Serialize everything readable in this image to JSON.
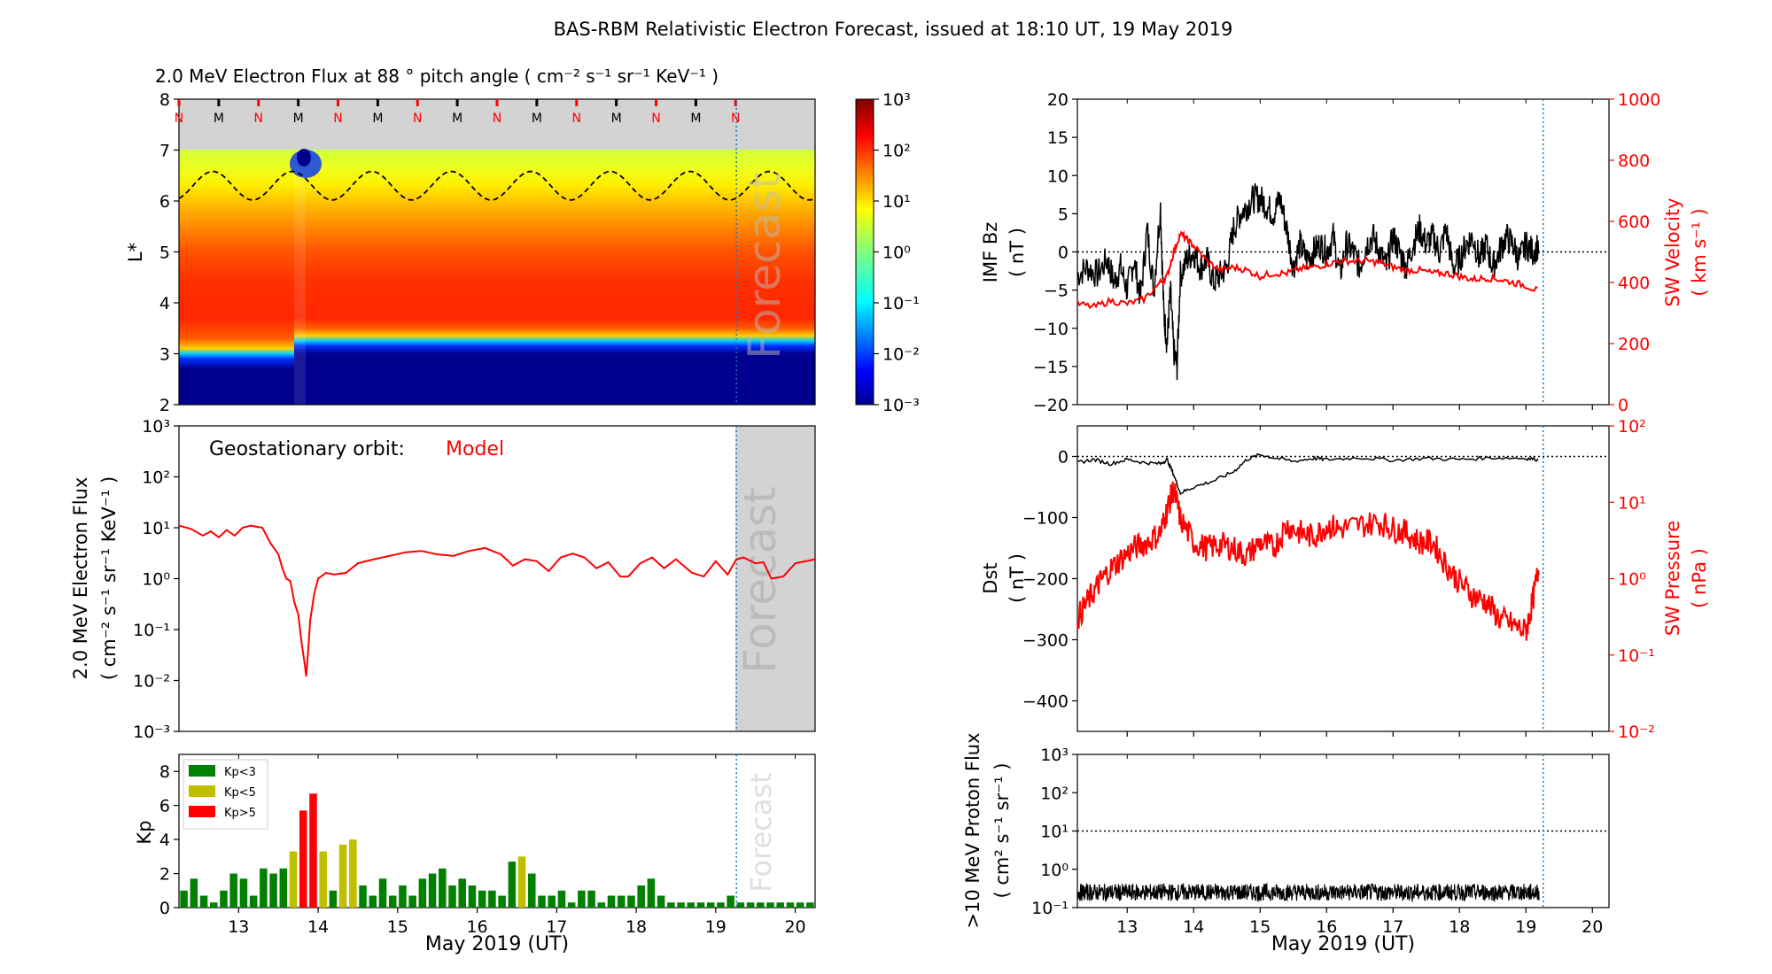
{
  "figure": {
    "suptitle": "BAS-RBM Relativistic Electron Forecast, issued at 18:10 UT, 19 May 2019"
  },
  "colors": {
    "red": "#ff0000",
    "black": "#000000",
    "grey": "#d3d3d3",
    "forecast_line": "#1f77b4",
    "kp_low": "#008000",
    "kp_mid": "#bfbf00",
    "kp_high": "#ff0000"
  },
  "chart_data": [
    {
      "id": "lstar_flux",
      "type": "heatmap",
      "title": "2.0 MeV Electron Flux at 88 ° pitch angle ( cm⁻² s⁻¹ sr⁻¹ KeV⁻¹ )",
      "ylabel": "L*",
      "xlim": [
        12.25,
        20.25
      ],
      "ylim": [
        2,
        8
      ],
      "yticks": [
        "2",
        "3",
        "4",
        "5",
        "6",
        "7",
        "8"
      ],
      "colorbar": {
        "scale": "log",
        "range": [
          0.001,
          1000
        ],
        "ticks": [
          "10⁻³",
          "10⁻²",
          "10⁻¹",
          "10⁰",
          "10¹",
          "10²",
          "10³"
        ]
      },
      "mn_markers": [
        "N",
        "M",
        "N",
        "M",
        "N",
        "M",
        "N",
        "M",
        "N",
        "M",
        "N",
        "M",
        "N",
        "M",
        "N"
      ],
      "overlay_text": "Forecast",
      "forecast_start": 19.26
    },
    {
      "id": "geo_flux",
      "type": "line",
      "label": "Geostationary orbit:",
      "series_label": "Model",
      "ylabel": "2.0 MeV Electron Flux",
      "ylabel2": "( cm⁻² s⁻¹ sr⁻¹ KeV⁻¹ )",
      "yscale": "log",
      "ylim": [
        0.001,
        1000
      ],
      "yticks": [
        "10⁻³",
        "10⁻²",
        "10⁻¹",
        "10⁰",
        "10¹",
        "10²",
        "10³"
      ],
      "xlim": [
        12.25,
        20.25
      ],
      "overlay_text": "Forecast",
      "forecast_start": 19.26,
      "x": [
        12.25,
        12.4,
        12.55,
        12.65,
        12.75,
        12.85,
        12.95,
        13.05,
        13.15,
        13.3,
        13.4,
        13.5,
        13.55,
        13.6,
        13.65,
        13.7,
        13.75,
        13.78,
        13.8,
        13.83,
        13.85,
        13.87,
        13.9,
        13.95,
        14.0,
        14.1,
        14.2,
        14.35,
        14.5,
        14.7,
        14.9,
        15.1,
        15.3,
        15.5,
        15.7,
        15.9,
        16.1,
        16.3,
        16.45,
        16.6,
        16.75,
        16.9,
        17.05,
        17.2,
        17.35,
        17.5,
        17.65,
        17.8,
        17.9,
        18.05,
        18.2,
        18.35,
        18.5,
        18.7,
        18.85,
        19.0,
        19.15,
        19.26,
        19.35,
        19.5,
        19.6,
        19.7,
        19.85,
        20.0,
        20.25
      ],
      "y": [
        11,
        9.5,
        7,
        8.5,
        6.5,
        9,
        7,
        10,
        11,
        10,
        5,
        3,
        1.6,
        1.0,
        0.9,
        0.35,
        0.2,
        0.08,
        0.045,
        0.022,
        0.012,
        0.03,
        0.15,
        0.5,
        1.0,
        1.3,
        1.2,
        1.3,
        2.0,
        2.4,
        2.8,
        3.3,
        3.5,
        3.0,
        2.8,
        3.5,
        4.0,
        3.0,
        1.8,
        2.4,
        2.2,
        1.4,
        2.6,
        3.1,
        2.6,
        1.6,
        2.1,
        1.1,
        1.1,
        2.0,
        2.6,
        1.6,
        2.4,
        1.3,
        1.1,
        2.2,
        1.2,
        2.4,
        2.6,
        2.0,
        2.1,
        1.0,
        1.1,
        2.0,
        2.4
      ]
    },
    {
      "id": "kp",
      "type": "bar",
      "ylabel": "Kp",
      "xlabel": "May 2019 (UT)",
      "xlim": [
        12.25,
        20.25
      ],
      "ylim": [
        0,
        9
      ],
      "yticks": [
        "0",
        "2",
        "4",
        "6",
        "8"
      ],
      "xticks": [
        "13",
        "14",
        "15",
        "16",
        "17",
        "18",
        "19",
        "20"
      ],
      "legend": [
        "Kp<3",
        "Kp<5",
        "Kp>5"
      ],
      "overlay_text": "Forecast",
      "forecast_start": 19.26,
      "values": [
        1.0,
        1.7,
        0.7,
        0.3,
        1.0,
        2.0,
        1.7,
        0.7,
        2.3,
        2.0,
        2.3,
        3.3,
        5.7,
        6.7,
        3.3,
        1.0,
        3.7,
        4.0,
        1.3,
        0.7,
        1.7,
        0.7,
        1.3,
        0.7,
        1.7,
        2.0,
        2.3,
        1.3,
        1.7,
        1.3,
        1.0,
        1.0,
        0.7,
        2.7,
        3.0,
        2.0,
        0.7,
        0.7,
        1.0,
        0.3,
        1.0,
        1.0,
        0.3,
        0.7,
        0.7,
        0.7,
        1.3,
        1.7,
        0.7,
        0.3,
        0.3,
        0.3,
        0.3,
        0.3,
        0.3,
        0.7,
        0.3,
        0.3,
        0.3,
        0.3,
        0.3,
        0.3,
        0.3,
        0.3
      ]
    },
    {
      "id": "imf_sw",
      "type": "line",
      "ylabel": "IMF Bz",
      "ylabel2": "( nT )",
      "ylim": [
        -20,
        20
      ],
      "yticks": [
        "−20",
        "−15",
        "−10",
        "−5",
        "0",
        "5",
        "10",
        "15",
        "20"
      ],
      "right_ylabel": "SW Velocity",
      "right_ylabel2": "( km s⁻¹ )",
      "right_ylim": [
        0,
        1000
      ],
      "right_yticks": [
        "0",
        "200",
        "400",
        "600",
        "800",
        "1000"
      ],
      "xlim": [
        12.25,
        20.25
      ],
      "forecast_start": 19.26,
      "bz": [
        [
          12.25,
          -3
        ],
        [
          12.4,
          -2
        ],
        [
          12.55,
          -3
        ],
        [
          12.7,
          -1
        ],
        [
          12.8,
          -4
        ],
        [
          12.9,
          -2
        ],
        [
          13.0,
          -5
        ],
        [
          13.1,
          -1
        ],
        [
          13.2,
          -6
        ],
        [
          13.3,
          3
        ],
        [
          13.4,
          -5
        ],
        [
          13.5,
          6
        ],
        [
          13.55,
          -8
        ],
        [
          13.6,
          -12
        ],
        [
          13.65,
          -5
        ],
        [
          13.7,
          -13
        ],
        [
          13.75,
          -15
        ],
        [
          13.8,
          -3
        ],
        [
          13.9,
          -1
        ],
        [
          14.0,
          0
        ],
        [
          14.1,
          -2
        ],
        [
          14.2,
          -1
        ],
        [
          14.3,
          -4
        ],
        [
          14.4,
          -3
        ],
        [
          14.5,
          -2
        ],
        [
          14.6,
          3
        ],
        [
          14.7,
          5
        ],
        [
          14.8,
          6
        ],
        [
          14.9,
          7
        ],
        [
          15.0,
          7
        ],
        [
          15.1,
          6
        ],
        [
          15.2,
          5
        ],
        [
          15.3,
          7
        ],
        [
          15.4,
          3
        ],
        [
          15.5,
          -2
        ],
        [
          15.6,
          1
        ],
        [
          15.7,
          -1
        ],
        [
          15.8,
          0
        ],
        [
          15.9,
          1
        ],
        [
          16.0,
          0
        ],
        [
          16.1,
          2
        ],
        [
          16.2,
          -3
        ],
        [
          16.3,
          1
        ],
        [
          16.4,
          0
        ],
        [
          16.5,
          -2
        ],
        [
          16.6,
          1
        ],
        [
          16.7,
          2
        ],
        [
          16.8,
          0
        ],
        [
          16.9,
          -2
        ],
        [
          17.0,
          2
        ],
        [
          17.1,
          0
        ],
        [
          17.2,
          -2
        ],
        [
          17.3,
          1
        ],
        [
          17.4,
          3
        ],
        [
          17.5,
          1
        ],
        [
          17.6,
          2
        ],
        [
          17.7,
          0
        ],
        [
          17.8,
          3
        ],
        [
          17.9,
          -2
        ],
        [
          18.0,
          -1
        ],
        [
          18.1,
          1
        ],
        [
          18.2,
          2
        ],
        [
          18.3,
          -1
        ],
        [
          18.4,
          1
        ],
        [
          18.5,
          -2
        ],
        [
          18.6,
          0
        ],
        [
          18.7,
          2
        ],
        [
          18.8,
          1
        ],
        [
          18.9,
          -1
        ],
        [
          19.0,
          1
        ],
        [
          19.1,
          0
        ],
        [
          19.2,
          1
        ]
      ],
      "vsw": [
        [
          12.25,
          330
        ],
        [
          12.5,
          320
        ],
        [
          12.75,
          340
        ],
        [
          13.0,
          330
        ],
        [
          13.25,
          345
        ],
        [
          13.5,
          400
        ],
        [
          13.6,
          420
        ],
        [
          13.7,
          500
        ],
        [
          13.8,
          560
        ],
        [
          13.9,
          540
        ],
        [
          14.0,
          520
        ],
        [
          14.2,
          470
        ],
        [
          14.4,
          440
        ],
        [
          14.6,
          450
        ],
        [
          14.8,
          440
        ],
        [
          15.0,
          420
        ],
        [
          15.2,
          430
        ],
        [
          15.4,
          430
        ],
        [
          15.6,
          445
        ],
        [
          15.8,
          450
        ],
        [
          16.0,
          460
        ],
        [
          16.2,
          470
        ],
        [
          16.4,
          470
        ],
        [
          16.6,
          470
        ],
        [
          16.8,
          465
        ],
        [
          17.0,
          450
        ],
        [
          17.2,
          440
        ],
        [
          17.4,
          440
        ],
        [
          17.6,
          430
        ],
        [
          17.8,
          430
        ],
        [
          18.0,
          420
        ],
        [
          18.2,
          410
        ],
        [
          18.4,
          415
        ],
        [
          18.6,
          410
        ],
        [
          18.8,
          400
        ],
        [
          19.0,
          390
        ],
        [
          19.2,
          370
        ]
      ]
    },
    {
      "id": "dst_pressure",
      "type": "line",
      "ylabel": "Dst",
      "ylabel2": "( nT )",
      "ylim": [
        -450,
        50
      ],
      "yticks": [
        "−400",
        "−300",
        "−200",
        "−100",
        "0"
      ],
      "right_ylabel": "SW Pressure",
      "right_ylabel2": "( nPa )",
      "right_yscale": "log",
      "right_ylim": [
        0.01,
        100
      ],
      "right_yticks": [
        "10⁻²",
        "10⁻¹",
        "10⁰",
        "10¹",
        "10²"
      ],
      "xlim": [
        12.25,
        20.25
      ],
      "forecast_start": 19.26,
      "dst": [
        [
          12.25,
          -10
        ],
        [
          12.5,
          -5
        ],
        [
          12.75,
          -12
        ],
        [
          13.0,
          -5
        ],
        [
          13.25,
          -10
        ],
        [
          13.5,
          -12
        ],
        [
          13.6,
          -5
        ],
        [
          13.7,
          -30
        ],
        [
          13.8,
          -60
        ],
        [
          14.0,
          -50
        ],
        [
          14.3,
          -40
        ],
        [
          14.6,
          -25
        ],
        [
          14.8,
          -5
        ],
        [
          15.0,
          3
        ],
        [
          15.2,
          -2
        ],
        [
          15.5,
          -8
        ],
        [
          15.8,
          -3
        ],
        [
          16.0,
          -5
        ],
        [
          16.5,
          -2
        ],
        [
          17.0,
          -6
        ],
        [
          17.5,
          -3
        ],
        [
          18.0,
          -5
        ],
        [
          18.5,
          -2
        ],
        [
          19.0,
          -3
        ],
        [
          19.2,
          -5
        ]
      ],
      "pressure": [
        [
          12.25,
          0.3
        ],
        [
          12.4,
          0.5
        ],
        [
          12.55,
          0.8
        ],
        [
          12.7,
          1.2
        ],
        [
          12.9,
          1.8
        ],
        [
          13.1,
          2.5
        ],
        [
          13.3,
          3
        ],
        [
          13.5,
          4
        ],
        [
          13.6,
          8
        ],
        [
          13.7,
          15
        ],
        [
          13.8,
          6
        ],
        [
          14.0,
          3
        ],
        [
          14.2,
          2.5
        ],
        [
          14.4,
          2.8
        ],
        [
          14.6,
          2.5
        ],
        [
          14.8,
          2
        ],
        [
          15.0,
          3
        ],
        [
          15.2,
          2.5
        ],
        [
          15.4,
          5
        ],
        [
          15.6,
          4
        ],
        [
          15.8,
          3.5
        ],
        [
          16.0,
          5
        ],
        [
          16.2,
          4.5
        ],
        [
          16.5,
          5
        ],
        [
          16.8,
          5.5
        ],
        [
          17.0,
          4.5
        ],
        [
          17.2,
          4
        ],
        [
          17.4,
          3
        ],
        [
          17.6,
          3
        ],
        [
          17.8,
          1.5
        ],
        [
          18.0,
          0.9
        ],
        [
          18.2,
          0.6
        ],
        [
          18.4,
          0.5
        ],
        [
          18.6,
          0.3
        ],
        [
          18.8,
          0.25
        ],
        [
          19.0,
          0.2
        ],
        [
          19.1,
          0.5
        ],
        [
          19.2,
          1.5
        ]
      ]
    },
    {
      "id": "proton_flux",
      "type": "line",
      "ylabel": ">10 MeV Proton Flux",
      "ylabel2": "( cm² s⁻¹ sr⁻¹ )",
      "xlabel": "May 2019 (UT)",
      "yscale": "log",
      "ylim": [
        0.1,
        1000
      ],
      "yticks": [
        "10⁻¹",
        "10⁰",
        "10¹",
        "10²",
        "10³"
      ],
      "xticks": [
        "13",
        "14",
        "15",
        "16",
        "17",
        "18",
        "19",
        "20"
      ],
      "xlim": [
        12.25,
        20.25
      ],
      "threshold": 10,
      "forecast_start": 19.26,
      "level": 0.25
    }
  ]
}
